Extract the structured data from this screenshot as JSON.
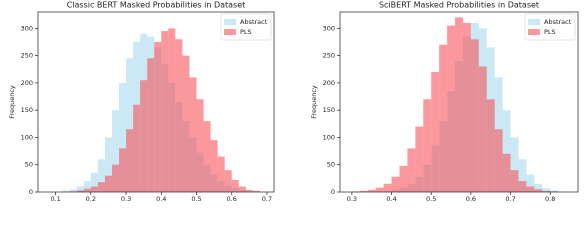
{
  "chart_data": [
    {
      "type": "histogram",
      "title": "Classic BERT Masked Probabilities in Dataset",
      "ylabel": "Frequency",
      "bins": [
        0.12,
        0.14,
        0.16,
        0.18,
        0.2,
        0.22,
        0.24,
        0.26,
        0.28,
        0.3,
        0.32,
        0.34,
        0.36,
        0.38,
        0.4,
        0.42,
        0.44,
        0.46,
        0.48,
        0.5,
        0.52,
        0.54,
        0.56,
        0.58,
        0.6,
        0.62,
        0.64,
        0.66,
        0.68
      ],
      "series": [
        {
          "name": "Abstract",
          "color": "#a9d9ee",
          "values": [
            2,
            5,
            10,
            20,
            35,
            60,
            100,
            150,
            200,
            245,
            275,
            290,
            285,
            265,
            235,
            200,
            165,
            130,
            100,
            72,
            50,
            32,
            20,
            12,
            7,
            4,
            2,
            1
          ]
        },
        {
          "name": "PLS",
          "color": "#f7545c",
          "values": [
            0,
            1,
            3,
            6,
            10,
            18,
            30,
            50,
            80,
            115,
            160,
            205,
            245,
            275,
            295,
            300,
            280,
            250,
            210,
            170,
            130,
            95,
            65,
            40,
            22,
            10,
            4,
            2
          ]
        }
      ],
      "xlim": [
        0.05,
        0.72
      ],
      "ylim": [
        0,
        330
      ],
      "xticks": [
        0.1,
        0.2,
        0.3,
        0.4,
        0.5,
        0.6,
        0.7
      ],
      "yticks": [
        0,
        50,
        100,
        150,
        200,
        250,
        300
      ],
      "legend": "upper right"
    },
    {
      "type": "histogram",
      "title": "SciBERT Masked Probabilities in Dataset",
      "ylabel": "Frequency",
      "bins": [
        0.3,
        0.32,
        0.34,
        0.36,
        0.38,
        0.4,
        0.42,
        0.44,
        0.46,
        0.48,
        0.5,
        0.52,
        0.54,
        0.56,
        0.58,
        0.6,
        0.62,
        0.64,
        0.66,
        0.68,
        0.7,
        0.72,
        0.74,
        0.76,
        0.78,
        0.8,
        0.82,
        0.84,
        0.86
      ],
      "series": [
        {
          "name": "Abstract",
          "color": "#a9d9ee",
          "values": [
            0,
            0,
            0,
            1,
            2,
            4,
            8,
            15,
            28,
            50,
            85,
            130,
            185,
            240,
            285,
            310,
            300,
            265,
            210,
            150,
            100,
            60,
            32,
            15,
            7,
            3,
            1,
            0
          ]
        },
        {
          "name": "PLS",
          "color": "#f7545c",
          "values": [
            1,
            2,
            4,
            8,
            15,
            28,
            48,
            80,
            120,
            170,
            220,
            270,
            305,
            320,
            310,
            280,
            230,
            170,
            115,
            70,
            40,
            20,
            10,
            5,
            2,
            1,
            0,
            0
          ]
        }
      ],
      "xlim": [
        0.27,
        0.87
      ],
      "ylim": [
        0,
        330
      ],
      "xticks": [
        0.3,
        0.4,
        0.5,
        0.6,
        0.7,
        0.8
      ],
      "yticks": [
        0,
        50,
        100,
        150,
        200,
        250,
        300
      ],
      "legend": "upper right"
    }
  ]
}
